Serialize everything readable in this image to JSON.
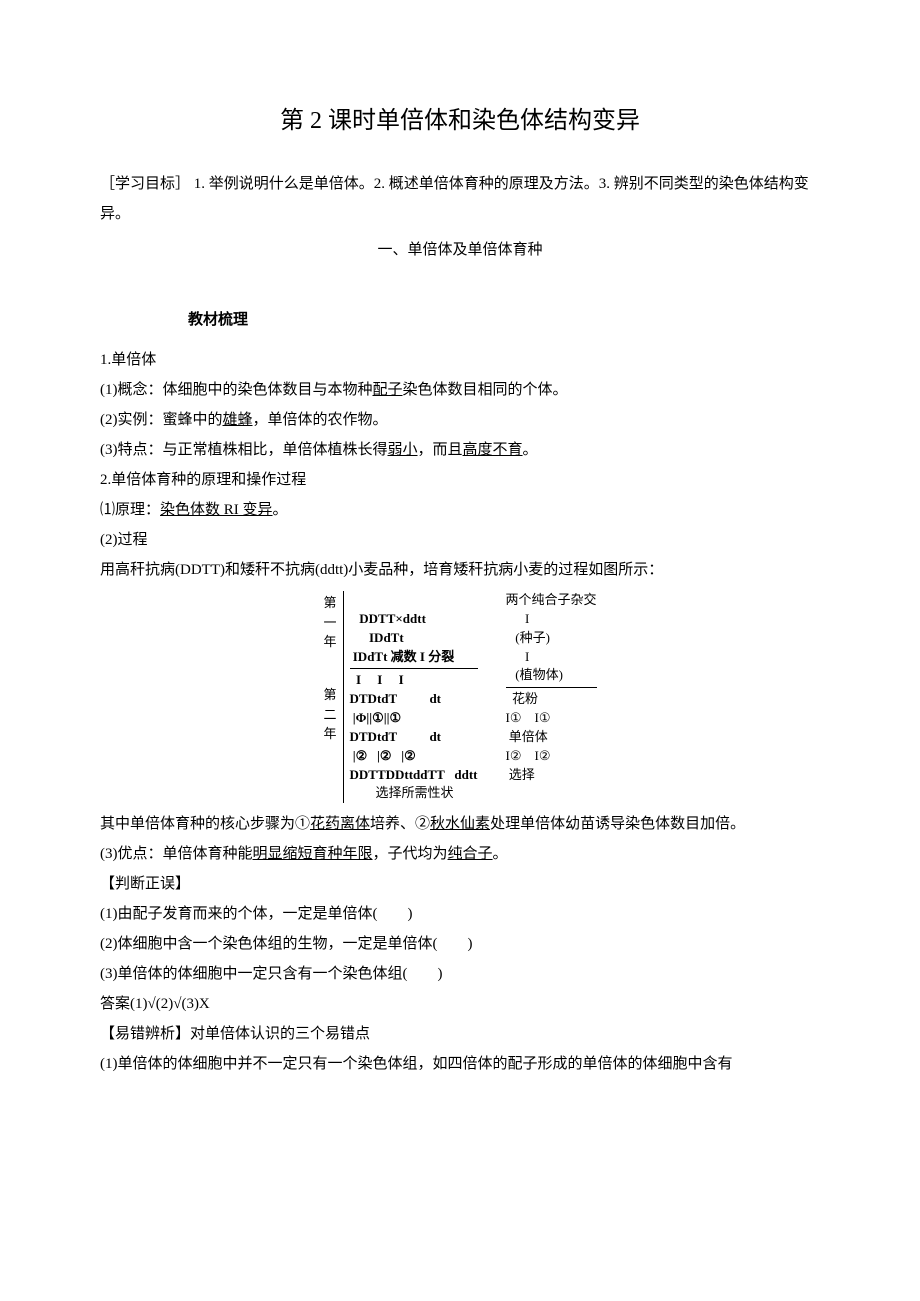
{
  "title": "第 2 课时单倍体和染色体结构变异",
  "objectives": "［学习目标］ 1. 举例说明什么是单倍体。2. 概述单倍体育种的原理及方法。3. 辨别不同类型的染色体结构变异。",
  "section_a": "一、单倍体及单倍体育种",
  "sub_heading": "教材梳理",
  "body": {
    "p1": "1.单倍体",
    "p2a": "(1)概念：体细胞中的染色体数目与本物种",
    "p2u": "配子",
    "p2b": "染色体数目相同的个体。",
    "p3a": "(2)实例：蜜蜂中的",
    "p3u": "雄蜂",
    "p3b": "，单倍体的农作物。",
    "p4a": "(3)特点：与正常植株相比，单倍体植株长得",
    "p4u1": "弱小",
    "p4b": "，而且",
    "p4u2": "高度不育",
    "p4c": "。",
    "p5": "2.单倍体育种的原理和操作过程",
    "p6a": "⑴原理：",
    "p6u": "染色体数 RI 变异",
    "p6b": "。",
    "p7": "(2)过程",
    "p8": "用高秆抗病(DDTT)和矮秆不抗病(ddtt)小麦品种，培育矮秆抗病小麦的过程如图所示：",
    "p9a": "其中单倍体育种的核心步骤为①",
    "p9u1": "花药离体",
    "p9b": "培养、②",
    "p9u2": "秋水仙素",
    "p9c": "处理单倍体幼苗诱导染色体数目加倍。",
    "p10a": "(3)优点：单倍体育种能",
    "p10u1": "明显缩短育种年限",
    "p10b": "，子代均为",
    "p10u2": "纯合子",
    "p10c": "。",
    "p11": "【判断正误】",
    "p12": "(1)由配子发育而来的个体，一定是单倍体(　　)",
    "p13": "(2)体细胞中含一个染色体组的生物，一定是单倍体(　　)",
    "p14": "(3)单倍体的体细胞中一定只含有一个染色体组(　　)",
    "p15": "答案(1)√(2)√(3)X",
    "p16": "【易错辨析】对单倍体认识的三个易错点",
    "p17": "(1)单倍体的体细胞中并不一定只有一个染色体组，如四倍体的配子形成的单倍体的体细胞中含有"
  },
  "diagram": {
    "year1": "第一年",
    "year2": "第二年",
    "left": {
      "r1": "          ",
      "r2": "   DDTT×ddtt",
      "r3": "      IDdTt",
      "r4": " IDdTt 减数 I 分裂",
      "r5": "  I     I     I",
      "r6": "DTDtdT          dt",
      "r7": " |Φ||①||①",
      "r8": "DTDtdT          dt",
      "r9": " |②   |②   |②",
      "r10": "DDTTDDttddTT   ddtt",
      "r11": "        选择所需性状"
    },
    "right": {
      "r1": "两个纯合子杂交",
      "r2": "      I",
      "r3": "   (种子)",
      "r4": "      I",
      "r5": "   (植物体)",
      "r6": "",
      "r7": "  花粉",
      "r8": "I①    I①",
      "r9": " 单倍体",
      "r10": "I②    I②",
      "r11": " 选择"
    }
  }
}
